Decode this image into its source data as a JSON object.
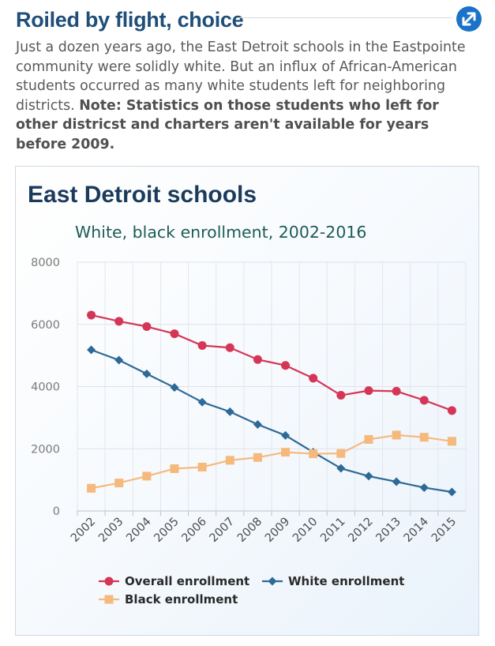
{
  "header": {
    "title": "Roiled by flight, choice",
    "expand_icon": "expand-arrows-icon",
    "accent_color": "#1a73c8"
  },
  "intro": {
    "text": "Just a dozen years ago, the East Detroit schools in the Eastpointe community were solidly white. But an influx of African-American students occurred as many white students left for neighboring districts. ",
    "note_bold": "Note: Statistics on those students who left for other districst and charters aren't available for years before 2009."
  },
  "chart_data": {
    "type": "line",
    "title": "East Detroit schools",
    "subtitle": "White, black enrollment, 2002-2016",
    "xlabel": "",
    "ylabel": "",
    "x": [
      "2002",
      "2003",
      "2004",
      "2005",
      "2006",
      "2007",
      "2008",
      "2009",
      "2010",
      "2011",
      "2012",
      "2013",
      "2014",
      "2015"
    ],
    "ylim": [
      0,
      8000
    ],
    "yticks": [
      0,
      2000,
      4000,
      6000,
      8000
    ],
    "grid": true,
    "legend_position": "bottom",
    "series": [
      {
        "name": "Overall enrollment",
        "color": "#d63656",
        "marker": "circle",
        "values": [
          6300,
          6100,
          5930,
          5700,
          5320,
          5250,
          4870,
          4680,
          4270,
          3720,
          3870,
          3850,
          3560,
          3230
        ]
      },
      {
        "name": "White enrollment",
        "color": "#2e6a96",
        "marker": "diamond",
        "values": [
          5180,
          4850,
          4410,
          3970,
          3500,
          3190,
          2780,
          2430,
          1890,
          1370,
          1120,
          940,
          750,
          610
        ]
      },
      {
        "name": "Black enrollment",
        "color": "#f6b97d",
        "marker": "square",
        "values": [
          730,
          900,
          1120,
          1360,
          1410,
          1630,
          1720,
          1890,
          1840,
          1850,
          2300,
          2440,
          2370,
          2240
        ]
      }
    ]
  }
}
